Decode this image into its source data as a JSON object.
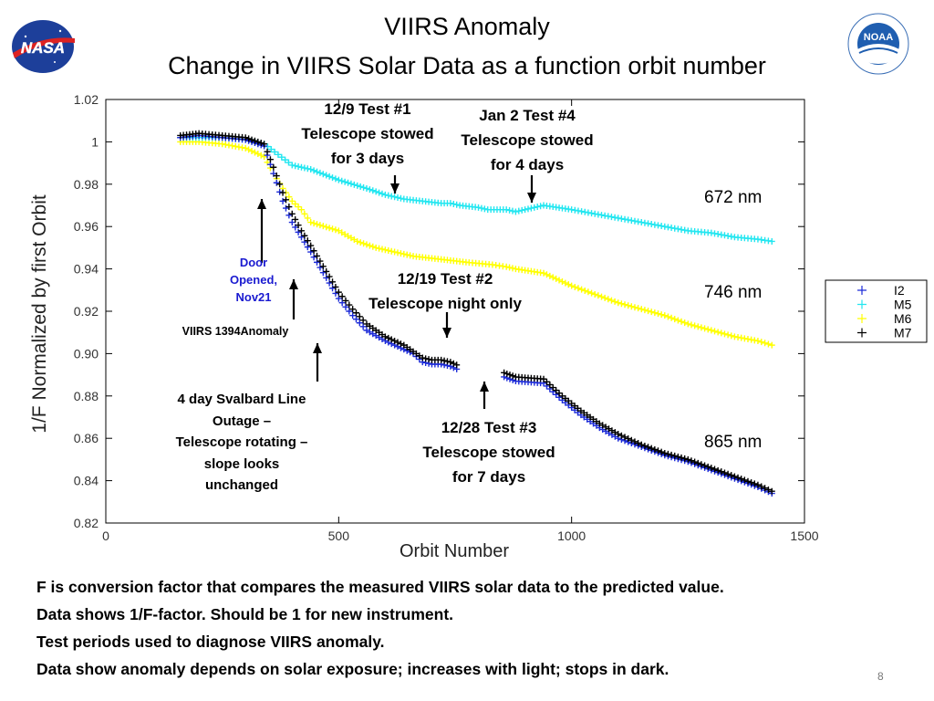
{
  "slide": {
    "title_line1": "VIIRS Anomaly",
    "title_line2": "Change in VIIRS Solar Data as a function orbit number",
    "logo_left": "NASA",
    "logo_right": "NOAA",
    "page_number": "8",
    "bottom_text": [
      "F is conversion factor that compares the measured VIIRS solar data to the predicted value.",
      "Data shows 1/F-factor.  Should be 1 for new instrument.",
      "Test periods used to diagnose VIIRS anomaly.",
      "Data show anomaly depends on solar exposure; increases with light; stops in dark."
    ]
  },
  "chart_data": {
    "type": "scatter",
    "xlabel": "Orbit Number",
    "ylabel": "1/F  Normalized by first Orbit",
    "xlim": [
      0,
      1500
    ],
    "ylim": [
      0.82,
      1.02
    ],
    "xticks": [
      0,
      500,
      1000,
      1500
    ],
    "yticks": [
      0.82,
      0.84,
      0.86,
      0.88,
      0.9,
      0.92,
      0.94,
      0.96,
      0.98,
      1,
      1.02
    ],
    "grid": false,
    "legend_position": "right, outside plot",
    "series": [
      {
        "name": "I2",
        "color": "#1c2bd8",
        "marker": "+",
        "points": [
          [
            160,
            1.002
          ],
          [
            200,
            1.003
          ],
          [
            250,
            1.002
          ],
          [
            300,
            1.001
          ],
          [
            340,
            0.998
          ],
          [
            360,
            0.985
          ],
          [
            380,
            0.972
          ],
          [
            400,
            0.962
          ],
          [
            420,
            0.955
          ],
          [
            440,
            0.948
          ],
          [
            500,
            0.926
          ],
          [
            530,
            0.918
          ],
          [
            560,
            0.911
          ],
          [
            600,
            0.906
          ],
          [
            640,
            0.902
          ],
          [
            660,
            0.9
          ],
          [
            680,
            0.896
          ],
          [
            700,
            0.895
          ],
          [
            720,
            0.895
          ],
          [
            740,
            0.894
          ],
          [
            760,
            0.892
          ],
          [
            855,
            0.889
          ],
          [
            880,
            0.887
          ],
          [
            940,
            0.886
          ],
          [
            980,
            0.878
          ],
          [
            1020,
            0.871
          ],
          [
            1060,
            0.865
          ],
          [
            1100,
            0.86
          ],
          [
            1150,
            0.856
          ],
          [
            1200,
            0.852
          ],
          [
            1250,
            0.849
          ],
          [
            1300,
            0.845
          ],
          [
            1350,
            0.841
          ],
          [
            1400,
            0.837
          ],
          [
            1430,
            0.834
          ]
        ]
      },
      {
        "name": "M5",
        "color": "#22e6f0",
        "marker": "+",
        "points": [
          [
            160,
            1.002
          ],
          [
            200,
            1.002
          ],
          [
            250,
            1.002
          ],
          [
            300,
            1.001
          ],
          [
            340,
            0.999
          ],
          [
            370,
            0.994
          ],
          [
            400,
            0.989
          ],
          [
            440,
            0.987
          ],
          [
            500,
            0.982
          ],
          [
            560,
            0.978
          ],
          [
            600,
            0.975
          ],
          [
            640,
            0.973
          ],
          [
            680,
            0.972
          ],
          [
            720,
            0.971
          ],
          [
            740,
            0.971
          ],
          [
            760,
            0.97
          ],
          [
            800,
            0.969
          ],
          [
            820,
            0.968
          ],
          [
            860,
            0.968
          ],
          [
            880,
            0.967
          ],
          [
            940,
            0.97
          ],
          [
            1000,
            0.968
          ],
          [
            1050,
            0.966
          ],
          [
            1100,
            0.964
          ],
          [
            1150,
            0.962
          ],
          [
            1200,
            0.96
          ],
          [
            1250,
            0.958
          ],
          [
            1300,
            0.957
          ],
          [
            1350,
            0.955
          ],
          [
            1400,
            0.954
          ],
          [
            1430,
            0.953
          ]
        ]
      },
      {
        "name": "M6",
        "color": "#ffff00",
        "marker": "+",
        "points": [
          [
            160,
            1.0
          ],
          [
            200,
            1.0
          ],
          [
            250,
            0.999
          ],
          [
            300,
            0.997
          ],
          [
            340,
            0.993
          ],
          [
            360,
            0.985
          ],
          [
            380,
            0.978
          ],
          [
            400,
            0.972
          ],
          [
            420,
            0.968
          ],
          [
            440,
            0.962
          ],
          [
            500,
            0.958
          ],
          [
            540,
            0.953
          ],
          [
            580,
            0.95
          ],
          [
            620,
            0.948
          ],
          [
            660,
            0.946
          ],
          [
            700,
            0.945
          ],
          [
            740,
            0.944
          ],
          [
            780,
            0.943
          ],
          [
            830,
            0.942
          ],
          [
            860,
            0.941
          ],
          [
            880,
            0.94
          ],
          [
            940,
            0.938
          ],
          [
            1000,
            0.932
          ],
          [
            1050,
            0.928
          ],
          [
            1100,
            0.924
          ],
          [
            1150,
            0.921
          ],
          [
            1200,
            0.918
          ],
          [
            1250,
            0.914
          ],
          [
            1300,
            0.911
          ],
          [
            1350,
            0.908
          ],
          [
            1400,
            0.906
          ],
          [
            1430,
            0.904
          ]
        ]
      },
      {
        "name": "M7",
        "color": "#000000",
        "marker": "+",
        "points": [
          [
            160,
            1.003
          ],
          [
            200,
            1.004
          ],
          [
            250,
            1.003
          ],
          [
            300,
            1.002
          ],
          [
            340,
            0.999
          ],
          [
            360,
            0.988
          ],
          [
            380,
            0.976
          ],
          [
            400,
            0.966
          ],
          [
            420,
            0.958
          ],
          [
            440,
            0.951
          ],
          [
            500,
            0.929
          ],
          [
            530,
            0.921
          ],
          [
            560,
            0.914
          ],
          [
            600,
            0.908
          ],
          [
            640,
            0.904
          ],
          [
            660,
            0.901
          ],
          [
            680,
            0.898
          ],
          [
            700,
            0.897
          ],
          [
            720,
            0.897
          ],
          [
            740,
            0.896
          ],
          [
            760,
            0.894
          ],
          [
            855,
            0.891
          ],
          [
            880,
            0.889
          ],
          [
            940,
            0.888
          ],
          [
            980,
            0.88
          ],
          [
            1020,
            0.873
          ],
          [
            1060,
            0.867
          ],
          [
            1100,
            0.862
          ],
          [
            1150,
            0.857
          ],
          [
            1200,
            0.853
          ],
          [
            1250,
            0.85
          ],
          [
            1300,
            0.846
          ],
          [
            1350,
            0.842
          ],
          [
            1400,
            0.838
          ],
          [
            1430,
            0.835
          ]
        ]
      }
    ],
    "wavelength_labels": [
      "672 nm",
      "746 nm",
      "865 nm"
    ],
    "annotations": {
      "test1": "12/9  Test #1\nTelescope stowed\nfor 3 days",
      "test4": "Jan 2 Test #4\nTelescope stowed\nfor 4 days",
      "test2": "12/19 Test #2\nTelescope night only",
      "test3": "12/28 Test #3\nTelescope stowed\nfor 7 days",
      "door": "Door\nOpened,\nNov21",
      "anomaly": "VIIRS 1394Anomaly",
      "svalbard": "4 day Svalbard Line\nOutage –\nTelescope rotating –\nslope looks\nunchanged"
    }
  }
}
